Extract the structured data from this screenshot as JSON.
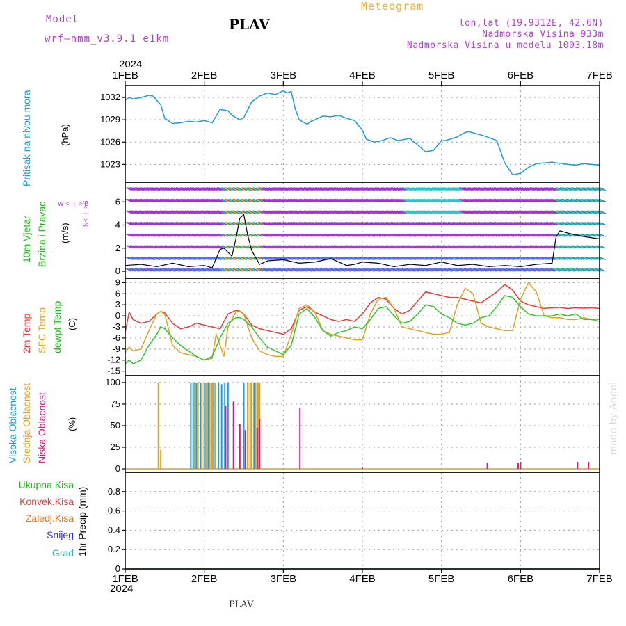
{
  "header": {
    "model_label": "Model",
    "model_name": "wrf–nmm_v3.9.1  e1km",
    "station": "PLAV",
    "product": "Meteogram",
    "lonlat": "lon,lat (19.9312E, 42.6N)",
    "elevation": "Nadmorska Visina 933m",
    "model_elevation": "Nadmorska Visina u modelu 1003.18m",
    "year_top": "2024",
    "year_bottom": "2024",
    "footer_station": "PLAV",
    "credit": "made by Angel"
  },
  "time_axis": {
    "labels": [
      "1FEB",
      "2FEB",
      "3FEB",
      "4FEB",
      "5FEB",
      "6FEB",
      "7FEB"
    ],
    "days": [
      0,
      1,
      2,
      3,
      4,
      5,
      6
    ]
  },
  "colors": {
    "pressure": "#1e9be0",
    "t2m": "#e83a3a",
    "tsfc": "#e0a020",
    "dewpt": "#2ec82e",
    "high_cloud": "#1e9be0",
    "mid_cloud": "#e0a020",
    "low_cloud": "#d81b7a",
    "wind_label": "#20b820",
    "total_precip": "#20b820",
    "conv_precip": "#e83a3a",
    "frz_precip": "#f07020",
    "snow": "#3030e0",
    "grad": "#20c0b0",
    "header_purple": "#b040d0",
    "header_orange": "#e8b040"
  },
  "panels": {
    "pressure": {
      "label": "Pritisak na nivou mora",
      "unit": "(hPa)",
      "ticks": [
        "1023",
        "1026",
        "1029",
        "1032"
      ]
    },
    "wind": {
      "label_line1": "10m Vjetar",
      "label_line2": "Brzina i Pravac",
      "unit": "(m/s)",
      "compass_top": "N<--|-->S",
      "compass_bottom": "W <--|--> E",
      "ticks": [
        "0",
        "2",
        "4",
        "6"
      ]
    },
    "temp": {
      "label_t2m": "2m Temp",
      "label_sfc": "SFC Temp",
      "label_dew": "dewpt Temp",
      "unit": "(C)",
      "ticks": [
        "-15",
        "-12",
        "-9",
        "-6",
        "-3",
        "0",
        "3",
        "6",
        "9"
      ]
    },
    "cloud": {
      "label_high": "Visoka Oblacnost",
      "label_mid": "Srednja Oblacnost",
      "label_low": "Niska  Oblacnost",
      "unit": "(%)",
      "ticks": [
        "0",
        "25",
        "50",
        "75",
        "100"
      ]
    },
    "precip": {
      "unit_label": "1hr Precip (mm)",
      "ticks": [
        "0",
        "0.2",
        "0.4",
        "0.6",
        "0.8"
      ],
      "legend": [
        "Ukupna Kisa",
        "Konvek.Kisa",
        "Zaledj.Kisa",
        "Snijeg",
        "Grad"
      ]
    }
  },
  "chart_data": [
    {
      "type": "line",
      "title": "",
      "ylabel": "Pritisak na nivou mora (hPa)",
      "ylim": [
        1020.6,
        1033.6
      ],
      "grid": true,
      "series": [
        {
          "name": "",
          "x_days": [
            0,
            0.05,
            0.1,
            0.2,
            0.3,
            0.35,
            0.45,
            0.5,
            0.6,
            0.7,
            0.8,
            0.9,
            1.0,
            1.1,
            1.15,
            1.2,
            1.3,
            1.35,
            1.45,
            1.5,
            1.6,
            1.7,
            1.8,
            1.9,
            2.0,
            2.05,
            2.1,
            2.15,
            2.2,
            2.3,
            2.35,
            2.4,
            2.5,
            2.6,
            2.7,
            2.8,
            2.9,
            3.0,
            3.05,
            3.15,
            3.25,
            3.35,
            3.45,
            3.5,
            3.6,
            3.7,
            3.8,
            3.9,
            4.0,
            4.05,
            4.2,
            4.3,
            4.35,
            4.45,
            4.55,
            4.6,
            4.7,
            4.8,
            4.9,
            5.0,
            5.1,
            5.2,
            5.3,
            5.4,
            5.45,
            5.55,
            5.6,
            5.7,
            5.8,
            5.9,
            6.0
          ],
          "values": [
            1031.6,
            1032.0,
            1031.8,
            1032.0,
            1032.3,
            1032.2,
            1031.0,
            1029.2,
            1028.5,
            1028.6,
            1028.8,
            1028.7,
            1028.9,
            1028.6,
            1029.5,
            1030.4,
            1030.2,
            1029.6,
            1029.0,
            1029.3,
            1031.4,
            1032.2,
            1032.6,
            1032.4,
            1032.9,
            1032.6,
            1032.8,
            1030.5,
            1029.0,
            1028.4,
            1028.8,
            1029.0,
            1029.5,
            1029.4,
            1029.6,
            1029.2,
            1028.9,
            1027.6,
            1026.4,
            1026.0,
            1026.2,
            1026.6,
            1026.2,
            1026.3,
            1026.5,
            1025.6,
            1024.7,
            1024.9,
            1026.2,
            1026.2,
            1026.7,
            1027.3,
            1027.4,
            1027.1,
            1026.8,
            1026.6,
            1026.2,
            1023.2,
            1021.6,
            1021.8,
            1022.6,
            1023.1,
            1023.2,
            1023.3,
            1023.2,
            1023.1,
            1023.0,
            1022.9,
            1023.1,
            1023.0,
            1022.9
          ]
        }
      ]
    },
    {
      "type": "line",
      "title": "",
      "ylabel": "10m Vjetar Brzina i Pravac (m/s)",
      "ylim": [
        -0.6,
        7.7
      ],
      "grid": true,
      "series": [
        {
          "name": "wind speed",
          "x_days": [
            0,
            0.2,
            0.4,
            0.6,
            0.8,
            1.0,
            1.1,
            1.2,
            1.25,
            1.35,
            1.4,
            1.45,
            1.5,
            1.55,
            1.6,
            1.7,
            1.8,
            2.0,
            2.2,
            2.4,
            2.6,
            2.8,
            2.9,
            3.0,
            3.2,
            3.4,
            3.6,
            3.8,
            4.0,
            4.2,
            4.4,
            4.6,
            4.8,
            5.0,
            5.2,
            5.4,
            5.45,
            5.5,
            5.6,
            5.8,
            6.0
          ],
          "values": [
            0.5,
            0.6,
            0.4,
            0.7,
            0.4,
            0.5,
            0.3,
            1.9,
            2.0,
            1.3,
            2.8,
            4.6,
            4.9,
            3.1,
            1.8,
            0.6,
            0.9,
            1.0,
            0.7,
            0.8,
            1.1,
            0.5,
            0.6,
            0.8,
            0.7,
            0.4,
            0.6,
            0.5,
            0.8,
            0.5,
            0.6,
            0.4,
            0.5,
            0.4,
            0.6,
            0.7,
            3.0,
            3.5,
            3.3,
            3.0,
            2.8
          ]
        }
      ]
    },
    {
      "type": "line",
      "title": "",
      "ylabel": "Temp (C)",
      "ylim": [
        -16.2,
        10.2
      ],
      "grid": true,
      "series": [
        {
          "name": "2m Temp",
          "x_days": [
            0,
            0.05,
            0.1,
            0.2,
            0.3,
            0.4,
            0.45,
            0.5,
            0.6,
            0.7,
            0.8,
            0.9,
            1.0,
            1.1,
            1.2,
            1.3,
            1.4,
            1.45,
            1.5,
            1.6,
            1.7,
            1.8,
            1.9,
            2.0,
            2.1,
            2.2,
            2.3,
            2.4,
            2.5,
            2.6,
            2.7,
            2.8,
            2.9,
            3.0,
            3.1,
            3.2,
            3.3,
            3.4,
            3.5,
            3.6,
            3.7,
            3.8,
            3.9,
            4.0,
            4.1,
            4.2,
            4.3,
            4.4,
            4.5,
            4.6,
            4.7,
            4.8,
            4.9,
            5.0,
            5.1,
            5.2,
            5.3,
            5.4,
            5.5,
            5.6,
            5.7,
            5.8,
            5.9,
            6.0
          ],
          "values": [
            -4.5,
            1.0,
            -1.0,
            -2.0,
            -1.5,
            0.5,
            1.2,
            0.8,
            -2.0,
            -3.5,
            -3.0,
            -2.0,
            -2.5,
            -3.0,
            -3.5,
            0.5,
            1.5,
            1.3,
            0.5,
            -2.5,
            -3.5,
            -4.0,
            -4.5,
            -5.0,
            -3.5,
            1.5,
            2.5,
            1.0,
            0.0,
            -1.0,
            -1.5,
            -1.0,
            -1.5,
            0.5,
            3.5,
            5.0,
            4.5,
            2.0,
            0.5,
            1.5,
            4.0,
            6.5,
            6.0,
            5.5,
            5.0,
            5.0,
            4.5,
            4.0,
            3.5,
            5.0,
            6.5,
            8.5,
            7.0,
            4.0,
            3.0,
            2.5,
            2.0,
            2.2,
            2.3,
            2.0,
            2.2,
            2.1,
            2.2,
            2.0
          ]
        },
        {
          "name": "SFC Temp",
          "x_days": [
            0,
            0.05,
            0.1,
            0.2,
            0.3,
            0.4,
            0.45,
            0.5,
            0.6,
            0.7,
            0.8,
            0.9,
            1.0,
            1.1,
            1.15,
            1.2,
            1.25,
            1.3,
            1.4,
            1.45,
            1.5,
            1.6,
            1.7,
            1.8,
            1.9,
            2.0,
            2.1,
            2.2,
            2.3,
            2.4,
            2.5,
            2.6,
            2.7,
            2.8,
            2.9,
            3.0,
            3.1,
            3.2,
            3.3,
            3.4,
            3.5,
            3.6,
            3.7,
            3.8,
            3.9,
            4.0,
            4.1,
            4.2,
            4.3,
            4.4,
            4.5,
            4.6,
            4.7,
            4.8,
            4.9,
            5.0,
            5.1,
            5.2,
            5.3,
            5.4,
            5.5,
            5.6,
            5.7,
            5.8,
            5.9,
            6.0
          ],
          "values": [
            -10.0,
            -8.5,
            -9.5,
            -9.0,
            -4.0,
            0.5,
            1.2,
            0.5,
            -8.0,
            -10.0,
            -10.5,
            -11.0,
            -12.0,
            -11.5,
            -5.0,
            -8.0,
            -11.0,
            -3.0,
            1.0,
            1.2,
            0.5,
            -6.0,
            -9.5,
            -10.5,
            -11.0,
            -11.0,
            -5.0,
            2.0,
            3.0,
            1.0,
            -4.0,
            -5.0,
            -5.5,
            -6.0,
            -6.5,
            -6.5,
            0.5,
            4.5,
            5.0,
            2.0,
            -3.0,
            -3.5,
            -4.0,
            -4.5,
            -5.0,
            -5.0,
            -4.5,
            3.0,
            7.5,
            6.0,
            -2.0,
            -3.0,
            -3.5,
            -4.0,
            -4.0,
            4.5,
            9.0,
            6.5,
            0.0,
            -0.5,
            -0.5,
            -1.0,
            -1.0,
            -0.5,
            -1.0,
            -1.0
          ]
        },
        {
          "name": "dewpt Temp",
          "x_days": [
            0,
            0.05,
            0.1,
            0.2,
            0.3,
            0.4,
            0.45,
            0.5,
            0.6,
            0.7,
            0.8,
            0.9,
            1.0,
            1.1,
            1.2,
            1.3,
            1.4,
            1.45,
            1.5,
            1.6,
            1.7,
            1.8,
            1.9,
            2.0,
            2.1,
            2.2,
            2.3,
            2.4,
            2.5,
            2.6,
            2.7,
            2.8,
            2.9,
            3.0,
            3.1,
            3.2,
            3.3,
            3.4,
            3.5,
            3.6,
            3.7,
            3.8,
            3.9,
            4.0,
            4.1,
            4.2,
            4.3,
            4.4,
            4.5,
            4.6,
            4.7,
            4.8,
            4.9,
            5.0,
            5.1,
            5.2,
            5.3,
            5.4,
            5.5,
            5.6,
            5.7,
            5.8,
            5.9,
            6.0
          ],
          "values": [
            -13.0,
            -12.0,
            -13.0,
            -12.0,
            -8.0,
            -5.0,
            -3.0,
            -3.5,
            -6.0,
            -8.0,
            -9.5,
            -11.0,
            -12.0,
            -11.0,
            -6.0,
            -2.0,
            -0.5,
            -0.5,
            -1.0,
            -3.0,
            -6.0,
            -8.5,
            -9.5,
            -10.5,
            -8.0,
            0.5,
            2.0,
            -0.5,
            -4.0,
            -5.5,
            -4.5,
            -4.0,
            -3.0,
            -3.5,
            -1.0,
            2.0,
            2.5,
            0.0,
            -2.0,
            -1.5,
            0.5,
            3.0,
            2.5,
            0.5,
            -0.5,
            -2.0,
            -2.5,
            -2.0,
            -0.5,
            0.0,
            2.5,
            5.5,
            5.0,
            2.5,
            0.5,
            0.0,
            0.0,
            0.0,
            0.5,
            0.0,
            0.5,
            -1.0,
            -1.0,
            -1.5
          ]
        }
      ]
    },
    {
      "type": "bar",
      "title": "",
      "ylabel": "Oblacnost (%)",
      "ylim": [
        -4,
        108
      ],
      "grid": true,
      "series": [
        {
          "name": "Visoka Oblacnost",
          "x_days": [
            0.83,
            0.86,
            0.9,
            0.95,
            1.0,
            1.05,
            1.12,
            1.18,
            1.22,
            1.26,
            1.3,
            1.5,
            1.55,
            1.6,
            1.63
          ],
          "values": [
            100,
            100,
            100,
            100,
            100,
            100,
            100,
            100,
            98,
            100,
            100,
            100,
            100,
            100,
            100
          ]
        },
        {
          "name": "Srednja Oblacnost",
          "x_days": [
            0.42,
            0.45,
            0.88,
            0.92,
            0.97,
            1.02,
            1.07,
            1.1,
            1.14,
            1.55,
            1.58,
            1.6,
            1.65,
            1.68,
            1.7
          ],
          "values": [
            100,
            22,
            100,
            100,
            100,
            100,
            100,
            100,
            100,
            100,
            100,
            100,
            100,
            100,
            100
          ]
        },
        {
          "name": "Niska Oblacnost",
          "x_days": [
            1.27,
            1.37,
            1.45,
            1.52,
            1.67,
            1.7,
            2.21,
            3.0,
            4.58,
            4.97,
            5.0,
            5.72,
            5.86
          ],
          "values": [
            73,
            78,
            52,
            45,
            47,
            58,
            71,
            2,
            7,
            7,
            8,
            8,
            8
          ]
        }
      ]
    },
    {
      "type": "bar",
      "title": "",
      "ylabel": "1hr Precip (mm)",
      "ylim": [
        0,
        1.0
      ],
      "grid": true,
      "series": [
        {
          "name": "Ukupna Kisa",
          "x_days": [],
          "values": []
        }
      ]
    }
  ]
}
